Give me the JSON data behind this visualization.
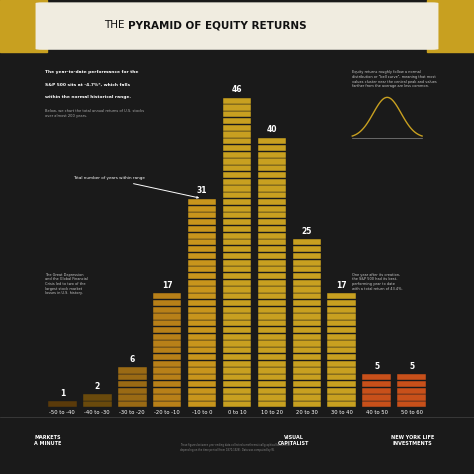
{
  "bg_color": "#1a1a1a",
  "header_bg": "#f0ece0",
  "gold_accent": "#c8a020",
  "footer_bg": "#111111",
  "categories": [
    "-50 to -40",
    "-40 to -30",
    "-30 to -20",
    "-20 to -10",
    "-10 to 0",
    "0 to 10",
    "10 to 20",
    "20 to 30",
    "30 to 40",
    "40 to 50",
    "50 to 60"
  ],
  "values": [
    1,
    2,
    6,
    17,
    31,
    46,
    40,
    25,
    17,
    5,
    5
  ],
  "x_positions": [
    -45,
    -35,
    -25,
    -15,
    -5,
    5,
    15,
    25,
    35,
    45,
    55
  ],
  "bar_colors": [
    "#5a3a0a",
    "#6a4a0c",
    "#9a6a14",
    "#b88018",
    "#c8951c",
    "#c8a020",
    "#c8a020",
    "#c8a020",
    "#c8a020",
    "#c8501a",
    "#c8501a"
  ],
  "bar_width": 8.5,
  "xlim": [
    -52,
    62
  ],
  "ylim": [
    0,
    52
  ],
  "text_color": "#ffffff",
  "label_fontsize": 4.5,
  "count_fontsize": 6,
  "title_normal": "THE ",
  "title_bold": "PYRAMID OF EQUITY RETURNS",
  "left_text_line1": "The year-to-date performance for the",
  "left_text_line2": "S&P 500 sits at -4.7%*, which falls",
  "left_text_line3": "within the normal historical range.",
  "left_sub": "Below, we chart the total annual returns of U.S. stocks\nover almost 200 years.",
  "annotation_text": "Total number of years within range",
  "annotation_val": "31",
  "right_text": "Equity returns roughly follow a normal\ndistribution or \"bell curve\", meaning that most\nvalues cluster near the central peak and values\nfarther from the average are less common.",
  "bottom_left_text": "The Great Depression\nand the Global Financial\nCrisis led to two of the\nlargest stock market\nlosses in U.S. history.",
  "bottom_right_text": "One year after its creation,\nthe S&P 500 had its best-\nperforming year to date\nwith a total return of 43.4%.",
  "footer_left": "MARKETS\nA MINUTE",
  "footer_mid": "VISUAL\nCAPITALIST",
  "footer_right": "NEW YORK LIFE\nINVESTMENTS"
}
